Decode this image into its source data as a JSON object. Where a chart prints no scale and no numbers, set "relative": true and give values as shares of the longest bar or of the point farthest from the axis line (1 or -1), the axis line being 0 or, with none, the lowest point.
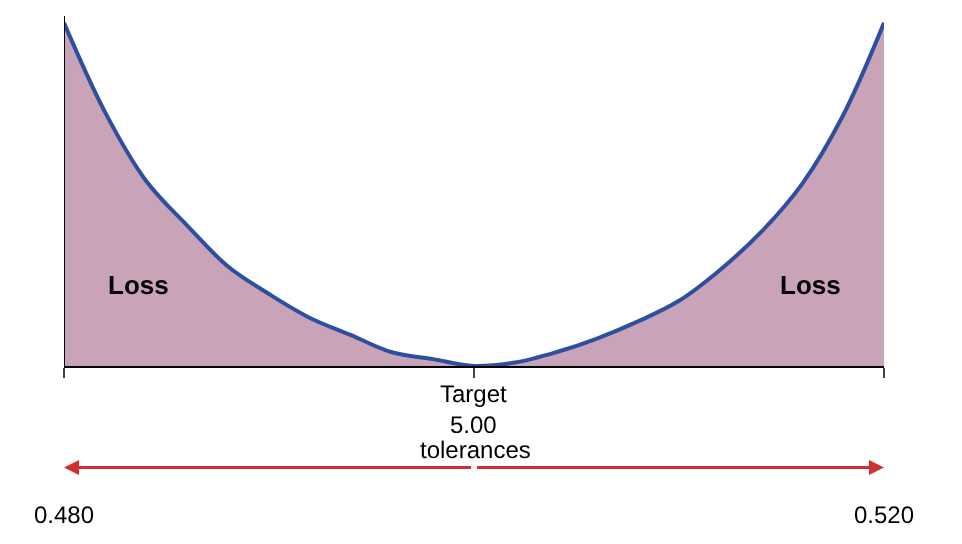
{
  "chart_data": {
    "type": "area",
    "relative": true,
    "x": [
      0.48,
      0.482,
      0.484,
      0.486,
      0.488,
      0.49,
      0.492,
      0.494,
      0.496,
      0.498,
      0.5,
      0.502,
      0.504,
      0.506,
      0.508,
      0.51,
      0.512,
      0.514,
      0.516,
      0.518,
      0.52
    ],
    "series": [
      {
        "color": "#c9a3b8",
        "values": [
          1,
          0.74,
          0.54,
          0.41,
          0.29,
          0.21,
          0.14,
          0.09,
          0.04,
          0.02,
          0,
          0.01,
          0.04,
          0.08,
          0.13,
          0.19,
          0.28,
          0.39,
          0.53,
          0.73,
          1
        ]
      }
    ],
    "xlim": [
      0.48,
      0.52
    ],
    "xticks": [
      {
        "value": 0.48,
        "label": "0.480"
      },
      {
        "value": 0.5,
        "label": null
      },
      {
        "value": 0.52,
        "label": "0.520"
      }
    ],
    "annotations": [
      "Loss",
      "Loss",
      "Target\n5.00",
      "tolerances"
    ],
    "legend": false,
    "marker": "none",
    "line_style": "solid"
  }
}
